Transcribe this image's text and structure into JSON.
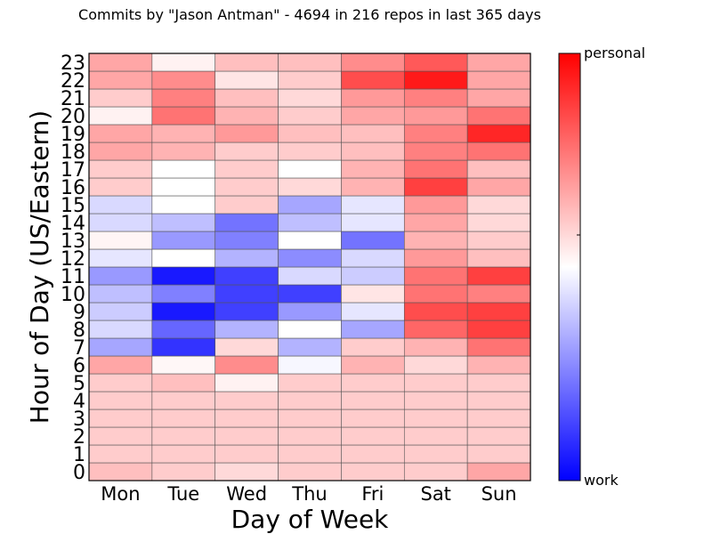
{
  "chart_data": {
    "type": "heatmap",
    "title": "Commits by \"Jason Antman\" - 4694 in 216 repos in last 365 days",
    "xlabel": "Day of Week",
    "ylabel": "Hour of Day (US/Eastern)",
    "x_categories": [
      "Mon",
      "Tue",
      "Wed",
      "Thu",
      "Fri",
      "Sat",
      "Sun"
    ],
    "y_categories": [
      "0",
      "1",
      "2",
      "3",
      "4",
      "5",
      "6",
      "7",
      "8",
      "9",
      "10",
      "11",
      "12",
      "13",
      "14",
      "15",
      "16",
      "17",
      "18",
      "19",
      "20",
      "21",
      "22",
      "23"
    ],
    "value_range": [
      -1,
      1
    ],
    "colorbar": {
      "low_label": "work",
      "high_label": "personal",
      "low_color": "#0000ff",
      "mid_color": "#ffffff",
      "high_color": "#ff0000"
    },
    "values": [
      [
        0.25,
        0.2,
        0.15,
        0.2,
        0.2,
        0.2,
        0.35
      ],
      [
        0.2,
        0.2,
        0.2,
        0.2,
        0.2,
        0.2,
        0.2
      ],
      [
        0.2,
        0.2,
        0.2,
        0.2,
        0.2,
        0.2,
        0.2
      ],
      [
        0.2,
        0.2,
        0.2,
        0.2,
        0.2,
        0.2,
        0.2
      ],
      [
        0.2,
        0.2,
        0.2,
        0.2,
        0.2,
        0.2,
        0.2
      ],
      [
        0.2,
        0.25,
        0.05,
        0.2,
        0.2,
        0.2,
        0.2
      ],
      [
        0.35,
        0.03,
        0.45,
        -0.03,
        0.3,
        0.15,
        0.3
      ],
      [
        -0.35,
        -0.8,
        0.15,
        -0.3,
        0.2,
        0.3,
        0.55
      ],
      [
        -0.15,
        -0.6,
        -0.3,
        0.0,
        -0.35,
        0.6,
        0.75
      ],
      [
        -0.2,
        -0.9,
        -0.75,
        -0.4,
        -0.1,
        0.7,
        0.75
      ],
      [
        -0.25,
        -0.5,
        -0.75,
        -0.75,
        0.1,
        0.55,
        0.5
      ],
      [
        -0.4,
        -0.9,
        -0.75,
        -0.15,
        -0.2,
        0.55,
        0.75
      ],
      [
        -0.1,
        0.0,
        -0.3,
        -0.45,
        -0.15,
        0.4,
        0.25
      ],
      [
        0.04,
        -0.4,
        -0.5,
        0.0,
        -0.55,
        0.3,
        0.2
      ],
      [
        -0.15,
        -0.25,
        -0.55,
        -0.25,
        -0.1,
        0.35,
        0.15
      ],
      [
        -0.15,
        0.0,
        0.2,
        -0.35,
        -0.1,
        0.4,
        0.15
      ],
      [
        0.2,
        0.0,
        0.2,
        0.15,
        0.3,
        0.75,
        0.35
      ],
      [
        0.2,
        0.0,
        0.2,
        0.0,
        0.3,
        0.55,
        0.25
      ],
      [
        0.35,
        0.3,
        0.2,
        0.2,
        0.25,
        0.5,
        0.55
      ],
      [
        0.35,
        0.3,
        0.4,
        0.25,
        0.25,
        0.5,
        0.85
      ],
      [
        0.05,
        0.55,
        0.3,
        0.2,
        0.35,
        0.4,
        0.55
      ],
      [
        0.2,
        0.5,
        0.25,
        0.15,
        0.4,
        0.5,
        0.35
      ],
      [
        0.35,
        0.45,
        0.1,
        0.2,
        0.7,
        0.9,
        0.35
      ],
      [
        0.35,
        0.05,
        0.25,
        0.25,
        0.45,
        0.65,
        0.35
      ]
    ]
  }
}
